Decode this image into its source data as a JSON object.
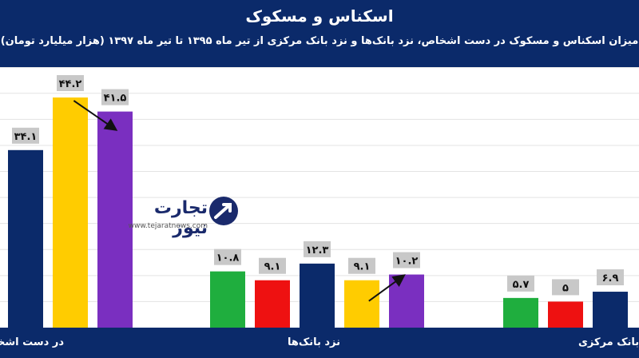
{
  "title": "اسکناس و مسکوک",
  "subtitle": "میزان اسکناس و مسکوک در دست اشخاص، نزد بانک‌ها و نزد بانک مرکزی از تیر ماه ۱۳۹۵ تا تیر ماه ۱۳۹۷ (هزار میلیارد تومان)",
  "watermark": {
    "name": "تجارت نیوز",
    "url": "www.tejaratnews.com"
  },
  "chart_data": {
    "type": "bar",
    "categories": [
      "در دست اشخاص",
      "نزد بانک‌ها",
      "نزد بانک مرکزی"
    ],
    "groups": [
      {
        "category": "در دست اشخاص",
        "values": [
          {
            "label": "۳۴.۱",
            "value": 34.1,
            "color": "#0b2a6a"
          },
          {
            "label": "۴۴.۲",
            "value": 44.2,
            "color": "#ffcc00"
          },
          {
            "label": "۴۱.۵",
            "value": 41.5,
            "color": "#7a2fc0"
          }
        ]
      },
      {
        "category": "نزد بانک‌ها",
        "values": [
          {
            "label": "۱۰.۸",
            "value": 10.8,
            "color": "#1fae3e"
          },
          {
            "label": "۹.۱",
            "value": 9.1,
            "color": "#ee1111"
          },
          {
            "label": "۱۲.۳",
            "value": 12.3,
            "color": "#0b2a6a"
          },
          {
            "label": "۹.۱",
            "value": 9.1,
            "color": "#ffcc00"
          },
          {
            "label": "۱۰.۲",
            "value": 10.2,
            "color": "#7a2fc0"
          }
        ]
      },
      {
        "category": "نزد بانک مرکزی",
        "values": [
          {
            "label": "۵.۷",
            "value": 5.7,
            "color": "#1fae3e"
          },
          {
            "label": "۵",
            "value": 5,
            "color": "#ee1111"
          },
          {
            "label": "۶.۹",
            "value": 6.9,
            "color": "#0b2a6a"
          }
        ]
      }
    ],
    "ylim": [
      0,
      50
    ],
    "grid": true,
    "colors": {
      "header": "#0b2a6a",
      "label_box": "#c8c8c8",
      "grid": "#e3e3e3",
      "arrow": "#111111"
    }
  }
}
